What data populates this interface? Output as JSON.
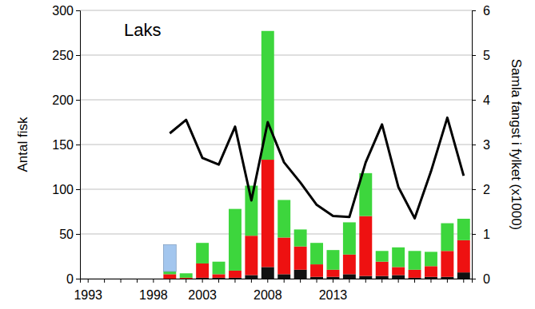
{
  "chart_data": {
    "type": "bar",
    "title": "Laks",
    "y_label": "Antal fisk",
    "y2_label": "Samla fangst i fylket (x1000)",
    "stacked": true,
    "grid": true,
    "categories": [
      "1993",
      null,
      null,
      null,
      "1998",
      null,
      null,
      "2003",
      null,
      null,
      null,
      "2008",
      null,
      null,
      null,
      "2013",
      null,
      null,
      null,
      null,
      null,
      null,
      null,
      null
    ],
    "ylim": [
      0,
      300
    ],
    "yticks": [
      0,
      50,
      100,
      150,
      200,
      250,
      300
    ],
    "y2lim": [
      0,
      6
    ],
    "y2ticks": [
      0,
      1,
      2,
      3,
      4,
      5,
      6
    ],
    "series": [
      {
        "type": "bar",
        "color": "#111111",
        "values": [
          null,
          null,
          null,
          null,
          null,
          0,
          0,
          1,
          1,
          1,
          4,
          13,
          5,
          10,
          2,
          2,
          5,
          3,
          3,
          4,
          1,
          2,
          2,
          7
        ]
      },
      {
        "type": "bar",
        "color": "#ee1111",
        "values": [
          null,
          null,
          null,
          null,
          null,
          5,
          1,
          16,
          4,
          8,
          44,
          120,
          41,
          26,
          14,
          8,
          22,
          67,
          16,
          9,
          9,
          12,
          29,
          36
        ]
      },
      {
        "type": "bar",
        "color": "#3dd63d",
        "values": [
          null,
          null,
          null,
          null,
          null,
          3,
          5,
          23,
          14,
          69,
          56,
          144,
          42,
          19,
          24,
          22,
          36,
          48,
          12,
          22,
          21,
          16,
          31,
          24
        ]
      },
      {
        "type": "bar",
        "color": "#a3c6ee",
        "values": [
          null,
          null,
          null,
          null,
          null,
          30,
          null,
          null,
          null,
          null,
          null,
          null,
          null,
          null,
          null,
          null,
          null,
          null,
          null,
          null,
          null,
          null,
          null,
          null
        ]
      },
      {
        "type": "line",
        "axis": "y2",
        "color": "#000000",
        "values": [
          null,
          null,
          null,
          null,
          null,
          3.25,
          3.55,
          2.7,
          2.55,
          3.4,
          1.75,
          3.5,
          2.6,
          2.15,
          1.65,
          1.4,
          1.38,
          2.6,
          3.45,
          2.05,
          1.35,
          2.4,
          3.6,
          2.3
        ]
      }
    ]
  }
}
